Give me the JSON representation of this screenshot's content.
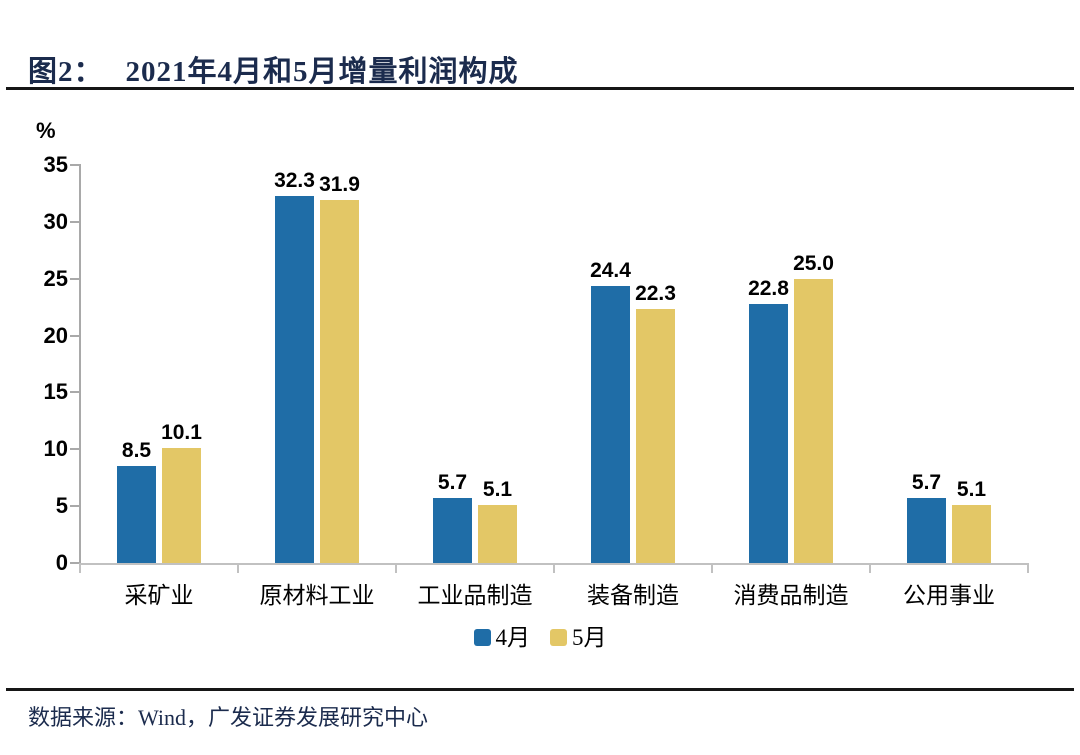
{
  "header": {
    "figure_label": "图2：",
    "title": "2021年4月和5月增量利润构成"
  },
  "chart_data": {
    "type": "bar",
    "title": "2021年4月和5月增量利润构成",
    "ylabel": "%",
    "categories": [
      "采矿业",
      "原材料工业",
      "工业品制造",
      "装备制造",
      "消费品制造",
      "公用事业"
    ],
    "series": [
      {
        "name": "4月",
        "color": "#1f6da7",
        "values": [
          8.5,
          32.3,
          5.7,
          24.4,
          22.8,
          5.7
        ]
      },
      {
        "name": "5月",
        "color": "#e3c766",
        "values": [
          10.1,
          31.9,
          5.1,
          22.3,
          25.0,
          5.1
        ]
      }
    ],
    "ylim": [
      0,
      35
    ],
    "yticks": [
      0,
      5,
      10,
      15,
      20,
      25,
      30,
      35
    ],
    "grid": false,
    "legend_position": "bottom",
    "value_labels": true,
    "value_decimals": 1
  },
  "footer": {
    "source": "数据来源：Wind，广发证券发展研究中心"
  }
}
